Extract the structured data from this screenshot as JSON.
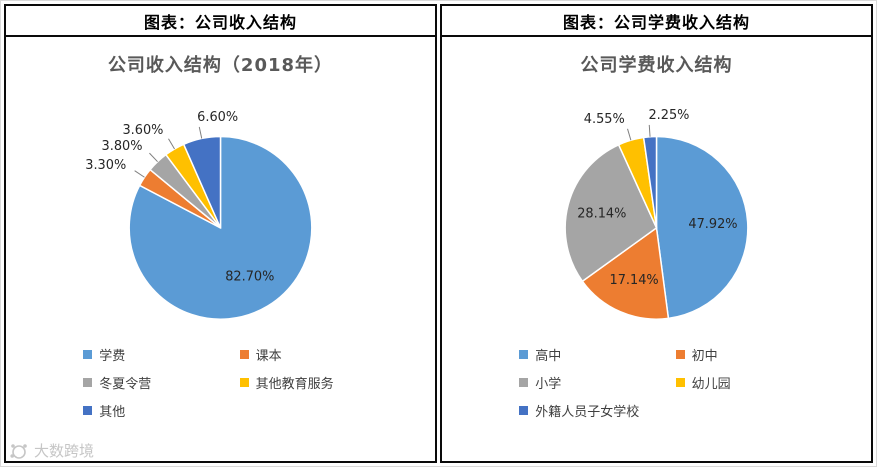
{
  "watermark": {
    "text": "大数跨境"
  },
  "panels": [
    {
      "header": "图表：公司收入结构"
    },
    {
      "header": "图表：公司学费收入结构"
    }
  ],
  "chart_data": [
    {
      "type": "pie",
      "title": "公司收入结构（2018年）",
      "legend_position": "bottom",
      "labels": [
        "学费",
        "课本",
        "冬夏令营",
        "其他教育服务",
        "其他"
      ],
      "values": [
        82.7,
        3.3,
        3.8,
        3.6,
        6.6
      ],
      "data_labels": [
        "82.70%",
        "3.30%",
        "3.80%",
        "3.60%",
        "6.60%"
      ],
      "colors": [
        "#5B9BD5",
        "#ED7D31",
        "#A5A5A5",
        "#FFC000",
        "#4472C4"
      ]
    },
    {
      "type": "pie",
      "title": "公司学费收入结构",
      "legend_position": "bottom",
      "labels": [
        "高中",
        "初中",
        "小学",
        "幼儿园",
        "外籍人员子女学校"
      ],
      "values": [
        47.92,
        17.14,
        28.14,
        4.55,
        2.25
      ],
      "data_labels": [
        "47.92%",
        "17.14%",
        "28.14%",
        "4.55%",
        "2.25%"
      ],
      "colors": [
        "#5B9BD5",
        "#ED7D31",
        "#A5A5A5",
        "#FFC000",
        "#4472C4"
      ]
    }
  ]
}
